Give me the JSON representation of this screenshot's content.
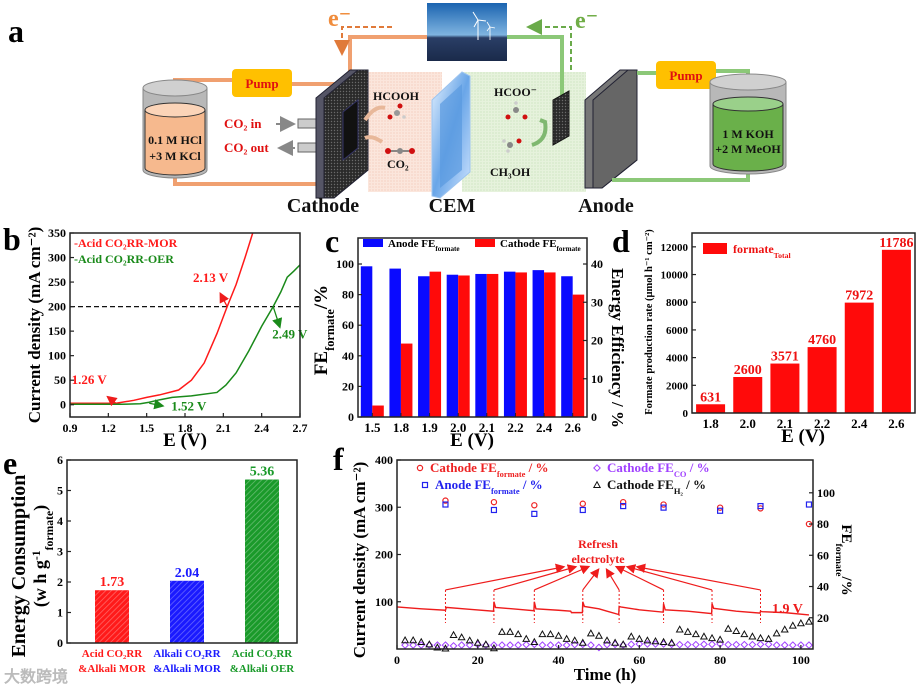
{
  "panel_labels": {
    "a": "a",
    "b": "b",
    "c": "c",
    "d": "d",
    "e": "e",
    "f": "f"
  },
  "schematic": {
    "electron_left": "e⁻",
    "electron_right": "e⁻",
    "pump_left": "Pump",
    "pump_right": "Pump",
    "left_tank_line1": "0.1 M HCl",
    "left_tank_line2": "+3 M KCl",
    "right_tank_line1": "1 M KOH",
    "right_tank_line2": "+2 M MeOH",
    "co2_in": "CO₂ in",
    "co2_out": "CO₂ out",
    "hcooh": "HCOOH",
    "co2": "CO₂",
    "hcoo": "HCOO⁻",
    "ch3oh": "CH₃OH",
    "cathode": "Cathode",
    "cem": "CEM",
    "anode": "Anode",
    "colors": {
      "orange": "#f0a070",
      "green": "#8cc878",
      "pump": "#ffc000"
    }
  },
  "watermark": "大数跨境",
  "chart_data": [
    {
      "panel": "b",
      "type": "line",
      "title": "",
      "xlabel": "E (V)",
      "ylabel": "Current density (mA cm⁻²)",
      "xlim": [
        0.9,
        2.7
      ],
      "ylim": [
        -25,
        350
      ],
      "xticks": [
        0.9,
        1.2,
        1.5,
        1.8,
        2.1,
        2.4,
        2.7
      ],
      "yticks": [
        0,
        50,
        100,
        150,
        200,
        250,
        300,
        350
      ],
      "reference_line": 200,
      "series": [
        {
          "name": "-Acid CO₂RR-MOR",
          "color": "#ff1a1a",
          "x": [
            0.9,
            1.1,
            1.26,
            1.4,
            1.5,
            1.6,
            1.75,
            1.85,
            1.95,
            2.05,
            2.13,
            2.2,
            2.27,
            2.33
          ],
          "y": [
            3,
            3,
            3,
            9,
            15,
            20,
            30,
            50,
            85,
            145,
            200,
            245,
            300,
            350
          ]
        },
        {
          "name": "-Acid CO₂RR-OER",
          "color": "#1a8a1a",
          "x": [
            0.9,
            1.3,
            1.45,
            1.52,
            1.6,
            1.7,
            1.85,
            2.05,
            2.12,
            2.2,
            2.3,
            2.4,
            2.49,
            2.55,
            2.6,
            2.65,
            2.7
          ],
          "y": [
            1,
            1,
            2,
            5,
            10,
            15,
            18,
            25,
            40,
            65,
            110,
            160,
            200,
            230,
            260,
            272,
            285
          ]
        }
      ],
      "annotations": [
        {
          "text": "2.13 V",
          "x": 2.0,
          "y": 250,
          "color": "#ff1a1a"
        },
        {
          "text": "1.26 V",
          "x": 1.05,
          "y": 42,
          "color": "#ff1a1a"
        },
        {
          "text": "2.49 V",
          "x": 2.62,
          "y": 135,
          "color": "#1a8a1a"
        },
        {
          "text": "1.52 V",
          "x": 1.83,
          "y": -12,
          "color": "#1a8a1a"
        }
      ],
      "legend": "top-left"
    },
    {
      "panel": "c",
      "type": "bar",
      "title": "",
      "xlabel": "E (V)",
      "ylabel": [
        {
          "t": "FE"
        },
        {
          "t": "formate",
          "sub": true
        },
        {
          "t": "/%"
        }
      ],
      "y2label": "Energy Efficiency / %",
      "categories": [
        "1.5",
        "1.8",
        "1.9",
        "2.0",
        "2.1",
        "2.2",
        "2.4",
        "2.6"
      ],
      "ylim": [
        0,
        117
      ],
      "yticks": [
        0,
        20,
        40,
        60,
        80,
        100
      ],
      "y2lim": [
        0,
        46.8
      ],
      "y2ticks": [
        0,
        10,
        20,
        30,
        40
      ],
      "series": [
        {
          "name": [
            {
              "t": "Anode FE"
            },
            {
              "t": "formate",
              "sub": true
            }
          ],
          "color": "#0a0aff",
          "values": [
            98.5,
            97,
            92,
            93,
            93.5,
            95,
            96,
            92
          ]
        },
        {
          "name": [
            {
              "t": "Cathode FE"
            },
            {
              "t": "formate",
              "sub": true
            }
          ],
          "color": "#ff0a0a",
          "values": [
            7.5,
            48,
            95,
            92.5,
            93.5,
            94.5,
            94.5,
            80
          ]
        }
      ],
      "legend": "top"
    },
    {
      "panel": "d",
      "type": "bar",
      "title": "",
      "xlabel": "E (V)",
      "ylabel": "Formate production rate (μmol h⁻¹ cm⁻²)",
      "categories": [
        "1.8",
        "2.0",
        "2.1",
        "2.2",
        "2.4",
        "2.6"
      ],
      "ylim": [
        0,
        13000
      ],
      "yticks": [
        0,
        2000,
        4000,
        6000,
        8000,
        10000,
        12000
      ],
      "series": [
        {
          "name": [
            {
              "t": "formate"
            },
            {
              "t": "Total",
              "sub": true
            }
          ],
          "color": "#ff0a0a",
          "values": [
            631,
            2600,
            3571,
            4760,
            7972,
            11786
          ]
        }
      ],
      "legend": "top-left"
    },
    {
      "panel": "e",
      "type": "bar",
      "title": "",
      "xlabel": "",
      "ylabel": "Energy Consumption",
      "ylabel2": [
        {
          "t": "(w h g"
        },
        {
          "t": "-1",
          "sup": true
        },
        {
          "t": "formate",
          "sub": true
        },
        {
          "t": ")"
        }
      ],
      "categories": [
        {
          "line1": "Acid CO₂RR",
          "line2": "&Alkali MOR",
          "color": "#ff1a1a"
        },
        {
          "line1": "Alkali CO₂RR",
          "line2": "&Alkali  MOR",
          "color": "#1a1aff"
        },
        {
          "line1": "Acid CO₂RR",
          "line2": "&Alkali  OER",
          "color": "#1a9a2a"
        }
      ],
      "ylim": [
        0,
        6
      ],
      "yticks": [
        0,
        1,
        2,
        3,
        4,
        5,
        6
      ],
      "values": [
        1.73,
        2.04,
        5.36
      ],
      "value_labels": [
        "1.73",
        "2.04",
        "5.36"
      ]
    },
    {
      "panel": "f",
      "type": "line+scatter",
      "title": "",
      "xlabel": "Time  (h)",
      "ylabel": "Current density (mA cm⁻²)",
      "y2label": [
        {
          "t": "FE"
        },
        {
          "t": "formate",
          "sub": true
        },
        {
          "t": "/%"
        }
      ],
      "xlim": [
        0,
        103
      ],
      "xticks": [
        0,
        20,
        40,
        60,
        80,
        100
      ],
      "ylim": [
        0,
        400
      ],
      "yticks": [
        100,
        200,
        300,
        400
      ],
      "y2lim": [
        0,
        121
      ],
      "y2ticks": [
        20,
        40,
        60,
        80,
        100
      ],
      "current": {
        "label": "1.9 V",
        "color": "#ee1c1c",
        "t": [
          0,
          6,
          12,
          12.2,
          18,
          23.9,
          24,
          24.4,
          30,
          33.9,
          34,
          34.4,
          40,
          43,
          43.2,
          45.9,
          46,
          46.4,
          50,
          52,
          54.9,
          55,
          55.4,
          60,
          65.9,
          66,
          66.4,
          72,
          77.9,
          78,
          78.4,
          84,
          89.9,
          90,
          90.4,
          96,
          102
        ],
        "j": [
          89,
          85,
          82,
          88,
          84,
          80,
          100,
          88,
          84,
          81,
          100,
          85,
          82,
          80,
          77,
          77,
          100,
          90,
          85,
          80,
          73,
          90,
          89,
          83,
          78,
          96,
          83,
          80,
          75,
          96,
          86,
          80,
          76,
          80,
          79,
          77,
          72
        ]
      },
      "refresh": {
        "label_line1": "Refresh",
        "label_line2": "electrolyte",
        "times": [
          12,
          24,
          34,
          46,
          55,
          66,
          78,
          90
        ]
      },
      "series": [
        {
          "name": [
            {
              "t": "Cathode FE"
            },
            {
              "t": "formate",
              "sub": true
            },
            {
              "t": " / %"
            }
          ],
          "marker": "circle",
          "color": "#ee2222",
          "t": [
            12,
            24,
            34,
            46,
            56,
            66,
            80,
            90,
            102
          ],
          "values": [
            95,
            94,
            92,
            93,
            94,
            92.5,
            90.5,
            90,
            80
          ]
        },
        {
          "name": [
            {
              "t": "Anode FE"
            },
            {
              "t": "formate",
              "sub": true
            },
            {
              "t": " / %"
            }
          ],
          "marker": "square",
          "color": "#2222ee",
          "t": [
            12,
            24,
            34,
            46,
            56,
            66,
            80,
            90,
            102
          ],
          "values": [
            92.5,
            89,
            86.5,
            89,
            91.5,
            90.5,
            88.5,
            91.5,
            92.5
          ]
        },
        {
          "name": [
            {
              "t": "Cathode FE"
            },
            {
              "t": "CO",
              "sub": true
            },
            {
              "t": " / %"
            }
          ],
          "marker": "diamond",
          "color": "#a040ff",
          "t": [
            2,
            4,
            6,
            8,
            10,
            12,
            14,
            16,
            18,
            20,
            22,
            24,
            26,
            28,
            30,
            32,
            34,
            36,
            38,
            40,
            42,
            44,
            46,
            48,
            50,
            52,
            54,
            56,
            58,
            60,
            62,
            64,
            66,
            68,
            70,
            72,
            74,
            76,
            78,
            80,
            82,
            84,
            86,
            88,
            90,
            92,
            94,
            96,
            98,
            100,
            102
          ],
          "values": [
            2.5,
            2.5,
            2.5,
            2.5,
            2.5,
            2.5,
            2,
            2.5,
            2.5,
            2.8,
            2.5,
            2.5,
            2.5,
            2.5,
            2.5,
            2.8,
            3,
            2.5,
            2.5,
            2.5,
            2.5,
            2.8,
            3,
            2.5,
            1,
            2.8,
            3,
            2.5,
            3,
            3.2,
            3.2,
            3.2,
            3.2,
            3,
            2.8,
            2.8,
            2.8,
            3,
            3,
            3.2,
            2.8,
            2.8,
            2.8,
            2.8,
            3,
            3,
            2.5,
            2.5,
            2.5,
            2.5,
            2.5
          ]
        },
        {
          "name": [
            {
              "t": "Cathode FE"
            },
            {
              "t": "H₂",
              "sub": true
            },
            {
              "t": " / %"
            }
          ],
          "marker": "triangle",
          "color": "#111111",
          "t": [
            2,
            4,
            6,
            8,
            10,
            12,
            14,
            16,
            18,
            20,
            22,
            24,
            26,
            28,
            30,
            32,
            34,
            36,
            38,
            40,
            42,
            44,
            46,
            48,
            50,
            52,
            54,
            56,
            58,
            60,
            62,
            64,
            66,
            68,
            70,
            72,
            74,
            76,
            78,
            80,
            82,
            84,
            86,
            88,
            90,
            92,
            94,
            96,
            98,
            100,
            102
          ],
          "values": [
            5.6,
            5.6,
            4.5,
            3,
            1,
            0.3,
            9,
            7.5,
            5.5,
            4,
            3,
            0.5,
            11,
            11,
            9.5,
            6.5,
            4.5,
            9.5,
            9.5,
            8.5,
            6.5,
            5.5,
            4,
            10,
            8.5,
            5.5,
            4,
            3,
            8,
            6.5,
            5.5,
            5,
            4.5,
            4,
            12.5,
            11,
            9.5,
            8,
            7,
            6,
            13,
            11.5,
            9.5,
            8,
            7,
            6.5,
            10,
            12.5,
            15,
            16.5,
            17.5
          ]
        }
      ],
      "legend": "top"
    }
  ]
}
